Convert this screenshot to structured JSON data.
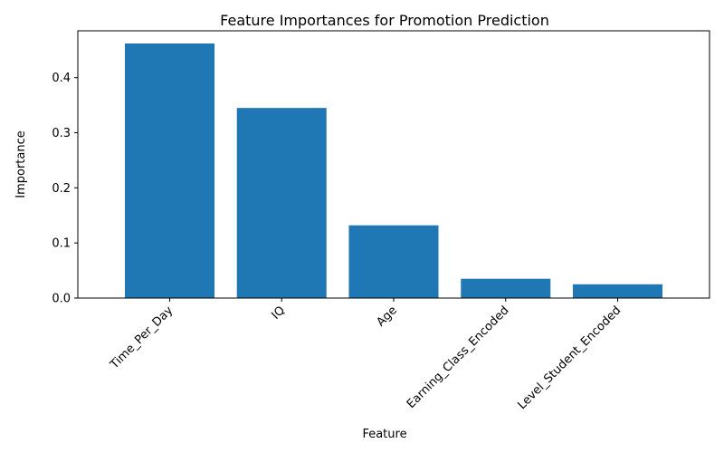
{
  "chart_data": {
    "type": "bar",
    "title": "Feature Importances for Promotion Prediction",
    "xlabel": "Feature",
    "ylabel": "Importance",
    "categories": [
      "Time_Per_Day",
      "IQ",
      "Age",
      "Earning_Class_Encoded",
      "Level_Student_Encoded"
    ],
    "values": [
      0.462,
      0.345,
      0.132,
      0.035,
      0.025
    ],
    "ylim": [
      0,
      0.485
    ],
    "yticks": [
      0.0,
      0.1,
      0.2,
      0.3,
      0.4
    ],
    "ytick_labels": [
      "0.0",
      "0.1",
      "0.2",
      "0.3",
      "0.4"
    ],
    "bar_color": "#1f77b4",
    "grid": false,
    "legend": "none"
  }
}
